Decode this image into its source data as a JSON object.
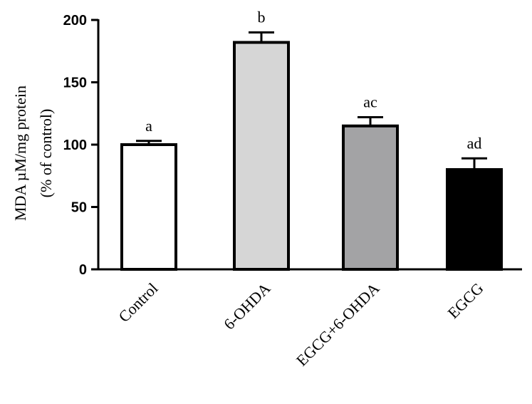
{
  "chart_data": {
    "type": "bar",
    "title": "",
    "xlabel": "",
    "ylabel": "MDA µM/mg protein",
    "ylabel_sub": "(% of control)",
    "ylim": [
      0,
      200
    ],
    "yticks": [
      0,
      50,
      100,
      150,
      200
    ],
    "ytick_labels": [
      "0",
      "50",
      "100",
      "150",
      "200"
    ],
    "categories": [
      "Control",
      "6-OHDA",
      "EGCG+6-OHDA",
      "EGCG"
    ],
    "values": [
      100,
      182,
      115,
      80
    ],
    "errors": [
      3,
      8,
      7,
      9
    ],
    "significance": [
      "a",
      "b",
      "ac",
      "ad"
    ],
    "bar_colors": [
      "#ffffff",
      "#d6d6d6",
      "#a3a3a5",
      "#000000"
    ],
    "grid": false
  }
}
